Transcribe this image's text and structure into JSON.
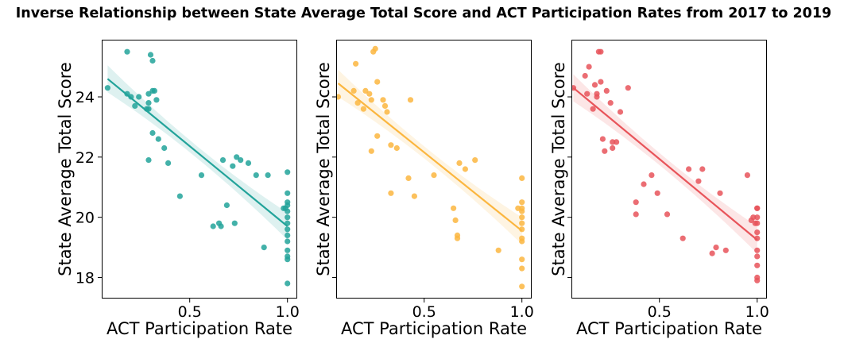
{
  "chart_data": {
    "title": "Inverse Relationship between State Average Total Score and ACT Participation Rates from 2017 to 2019",
    "panels": [
      {
        "type": "scatter",
        "fit": "linear-regression-with-ci",
        "xlabel": "ACT Participation Rate",
        "ylabel": "State Average Total Score",
        "xlim": [
          0.05,
          1.05
        ],
        "ylim": [
          17.3,
          25.9
        ],
        "xticks": [
          0.5,
          1.0
        ],
        "xtick_labels": [
          "0.5",
          "1.0"
        ],
        "yticks": [
          18,
          20,
          22,
          24
        ],
        "ytick_labels": [
          "18",
          "20",
          "22",
          "24"
        ],
        "color": "#22a39a",
        "regression": {
          "x": [
            0.08,
            1.0
          ],
          "y": [
            24.6,
            19.7
          ]
        },
        "ci_halfwidth": {
          "ends": 0.45,
          "mid": 0.2
        },
        "points": [
          [
            0.08,
            24.3
          ],
          [
            0.18,
            25.5
          ],
          [
            0.18,
            24.1
          ],
          [
            0.2,
            24.0
          ],
          [
            0.22,
            23.7
          ],
          [
            0.24,
            24.0
          ],
          [
            0.28,
            23.6
          ],
          [
            0.29,
            23.6
          ],
          [
            0.29,
            24.1
          ],
          [
            0.3,
            25.4
          ],
          [
            0.31,
            25.2
          ],
          [
            0.31,
            24.2
          ],
          [
            0.32,
            24.2
          ],
          [
            0.29,
            23.8
          ],
          [
            0.29,
            21.9
          ],
          [
            0.31,
            22.8
          ],
          [
            0.33,
            23.9
          ],
          [
            0.34,
            22.6
          ],
          [
            0.37,
            22.3
          ],
          [
            0.39,
            21.8
          ],
          [
            0.45,
            20.7
          ],
          [
            0.56,
            21.4
          ],
          [
            0.62,
            19.7
          ],
          [
            0.65,
            19.8
          ],
          [
            0.66,
            19.7
          ],
          [
            0.67,
            21.9
          ],
          [
            0.69,
            20.4
          ],
          [
            0.72,
            21.7
          ],
          [
            0.73,
            19.8
          ],
          [
            0.74,
            22.0
          ],
          [
            0.76,
            21.9
          ],
          [
            0.8,
            21.8
          ],
          [
            0.84,
            21.4
          ],
          [
            0.88,
            19.0
          ],
          [
            0.9,
            21.4
          ],
          [
            0.98,
            20.3
          ],
          [
            0.99,
            20.3
          ],
          [
            1.0,
            21.5
          ],
          [
            1.0,
            20.8
          ],
          [
            1.0,
            20.5
          ],
          [
            1.0,
            20.4
          ],
          [
            1.0,
            20.2
          ],
          [
            1.0,
            20.0
          ],
          [
            1.0,
            19.8
          ],
          [
            1.0,
            19.6
          ],
          [
            1.0,
            19.4
          ],
          [
            1.0,
            19.2
          ],
          [
            1.0,
            18.9
          ],
          [
            1.0,
            18.7
          ],
          [
            1.0,
            18.6
          ],
          [
            1.0,
            17.8
          ]
        ]
      },
      {
        "type": "scatter",
        "fit": "linear-regression-with-ci",
        "xlabel": "ACT Participation Rate",
        "ylabel": "State Average Total Score",
        "xlim": [
          0.05,
          1.05
        ],
        "ylim": [
          17.3,
          25.9
        ],
        "xticks": [
          0.5,
          1.0
        ],
        "xtick_labels": [
          "0.5",
          "1.0"
        ],
        "yticks": [
          18,
          20,
          22,
          24
        ],
        "ytick_labels": [],
        "color": "#fbb63f",
        "regression": {
          "x": [
            0.06,
            1.0
          ],
          "y": [
            24.45,
            19.55
          ]
        },
        "ci_halfwidth": {
          "ends": 0.45,
          "mid": 0.2
        },
        "points": [
          [
            0.06,
            24.0
          ],
          [
            0.15,
            25.1
          ],
          [
            0.14,
            24.2
          ],
          [
            0.16,
            23.8
          ],
          [
            0.19,
            23.6
          ],
          [
            0.2,
            24.2
          ],
          [
            0.22,
            24.1
          ],
          [
            0.23,
            23.9
          ],
          [
            0.24,
            25.5
          ],
          [
            0.25,
            25.6
          ],
          [
            0.26,
            24.5
          ],
          [
            0.23,
            22.2
          ],
          [
            0.26,
            22.7
          ],
          [
            0.29,
            23.9
          ],
          [
            0.3,
            23.7
          ],
          [
            0.31,
            23.5
          ],
          [
            0.33,
            22.4
          ],
          [
            0.36,
            22.3
          ],
          [
            0.33,
            20.8
          ],
          [
            0.42,
            21.3
          ],
          [
            0.43,
            23.9
          ],
          [
            0.45,
            20.7
          ],
          [
            0.55,
            21.4
          ],
          [
            0.65,
            20.3
          ],
          [
            0.66,
            19.9
          ],
          [
            0.67,
            19.4
          ],
          [
            0.67,
            19.3
          ],
          [
            0.68,
            21.8
          ],
          [
            0.71,
            21.6
          ],
          [
            0.76,
            21.9
          ],
          [
            0.88,
            18.9
          ],
          [
            0.98,
            20.3
          ],
          [
            1.0,
            21.3
          ],
          [
            1.0,
            20.5
          ],
          [
            1.0,
            20.3
          ],
          [
            1.0,
            20.2
          ],
          [
            1.0,
            20.0
          ],
          [
            1.0,
            19.8
          ],
          [
            1.0,
            19.6
          ],
          [
            1.0,
            19.3
          ],
          [
            1.0,
            19.2
          ],
          [
            1.0,
            18.6
          ],
          [
            1.0,
            18.3
          ],
          [
            1.0,
            17.7
          ]
        ]
      },
      {
        "type": "scatter",
        "fit": "linear-regression-with-ci",
        "xlabel": "ACT Participation Rate",
        "ylabel": "State Average Total Score",
        "xlim": [
          0.05,
          1.05
        ],
        "ylim": [
          17.3,
          25.9
        ],
        "xticks": [
          0.5,
          1.0
        ],
        "xtick_labels": [
          "0.5",
          "1.0"
        ],
        "yticks": [
          18,
          20,
          22,
          24
        ],
        "ytick_labels": [],
        "color": "#e8545a",
        "regression": {
          "x": [
            0.06,
            1.0
          ],
          "y": [
            24.3,
            19.25
          ]
        },
        "ci_halfwidth": {
          "ends": 0.45,
          "mid": 0.2
        },
        "points": [
          [
            0.06,
            24.3
          ],
          [
            0.12,
            24.7
          ],
          [
            0.13,
            24.1
          ],
          [
            0.14,
            25.0
          ],
          [
            0.16,
            23.6
          ],
          [
            0.17,
            24.4
          ],
          [
            0.18,
            24.1
          ],
          [
            0.18,
            24.0
          ],
          [
            0.19,
            25.5
          ],
          [
            0.2,
            25.5
          ],
          [
            0.2,
            24.5
          ],
          [
            0.21,
            22.6
          ],
          [
            0.22,
            22.2
          ],
          [
            0.23,
            24.2
          ],
          [
            0.25,
            23.8
          ],
          [
            0.26,
            22.3
          ],
          [
            0.26,
            22.5
          ],
          [
            0.28,
            22.5
          ],
          [
            0.3,
            23.5
          ],
          [
            0.34,
            24.3
          ],
          [
            0.38,
            20.5
          ],
          [
            0.38,
            20.1
          ],
          [
            0.42,
            21.1
          ],
          [
            0.46,
            21.4
          ],
          [
            0.49,
            20.8
          ],
          [
            0.54,
            20.1
          ],
          [
            0.62,
            19.3
          ],
          [
            0.65,
            21.6
          ],
          [
            0.7,
            21.2
          ],
          [
            0.72,
            21.6
          ],
          [
            0.77,
            18.8
          ],
          [
            0.79,
            19.0
          ],
          [
            0.81,
            20.8
          ],
          [
            0.84,
            18.9
          ],
          [
            0.95,
            21.4
          ],
          [
            0.97,
            19.9
          ],
          [
            0.98,
            20.0
          ],
          [
            1.0,
            20.3
          ],
          [
            1.0,
            20.0
          ],
          [
            1.0,
            19.8
          ],
          [
            1.0,
            19.5
          ],
          [
            1.0,
            19.3
          ],
          [
            1.0,
            18.9
          ],
          [
            1.0,
            18.7
          ],
          [
            1.0,
            18.4
          ],
          [
            1.0,
            18.0
          ],
          [
            1.0,
            17.9
          ],
          [
            1.0,
            20.3
          ],
          [
            0.99,
            19.8
          ]
        ]
      }
    ]
  }
}
